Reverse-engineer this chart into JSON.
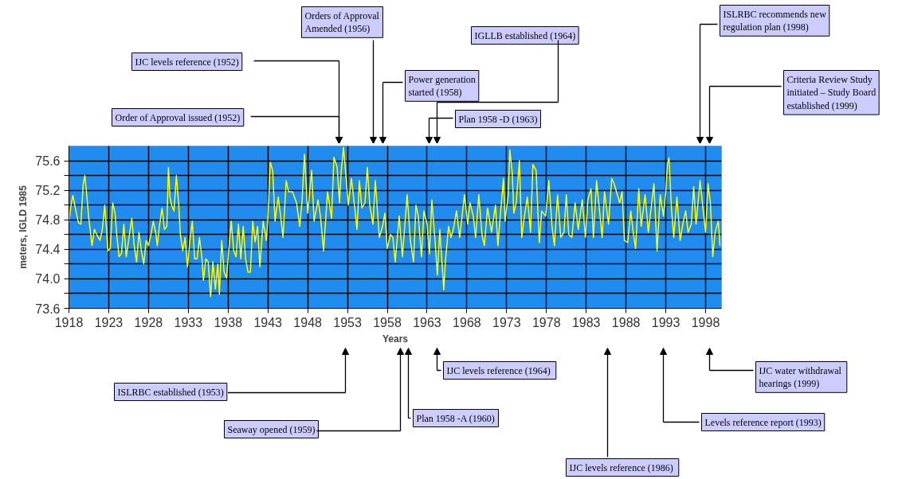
{
  "chart_data": {
    "type": "line",
    "xlabel": "Years",
    "ylabel": "meters, IGLD 1985",
    "xlim": [
      1918,
      2000
    ],
    "xticks": [
      1918,
      1923,
      1928,
      1933,
      1938,
      1943,
      1948,
      1953,
      1958,
      1963,
      1968,
      1973,
      1978,
      1983,
      1988,
      1993,
      1998
    ],
    "ylim": [
      73.6,
      75.8
    ],
    "yticks": [
      73.6,
      {
        "value": 73.8,
        "label": null
      },
      {
        "value": 74,
        "label": "74.0"
      },
      {
        "value": 74.2,
        "label": null
      },
      74.4,
      {
        "value": 74.6,
        "label": null
      },
      74.8,
      {
        "value": 75,
        "label": null
      },
      75.2,
      {
        "value": 75.4,
        "label": null
      },
      75.6
    ],
    "grid": true,
    "marker": "none",
    "line_style": "solid",
    "series": [
      {
        "color": "#ffff00",
        "x": [
          1918.0,
          1918.3,
          1918.5,
          1918.8,
          1919.2,
          1919.5,
          1919.8,
          1920.0,
          1920.2,
          1920.5,
          1920.9,
          1921.2,
          1921.5,
          1921.9,
          1922.2,
          1922.5,
          1922.7,
          1922.9,
          1923.2,
          1923.5,
          1923.8,
          1924.0,
          1924.3,
          1924.6,
          1924.9,
          1925.2,
          1925.5,
          1925.9,
          1926.2,
          1926.5,
          1926.8,
          1927.1,
          1927.4,
          1927.7,
          1928.0,
          1928.3,
          1928.6,
          1928.9,
          1929.1,
          1929.4,
          1929.7,
          1930.0,
          1930.3,
          1930.5,
          1930.7,
          1930.9,
          1931.2,
          1931.5,
          1931.8,
          1932.0,
          1932.3,
          1932.6,
          1932.9,
          1933.2,
          1933.5,
          1933.8,
          1934.1,
          1934.4,
          1934.7,
          1934.9,
          1935.2,
          1935.5,
          1935.8,
          1936.1,
          1936.4,
          1936.7,
          1936.9,
          1937.2,
          1937.5,
          1937.8,
          1938.1,
          1938.4,
          1938.7,
          1939.0,
          1939.3,
          1939.6,
          1939.9,
          1940.2,
          1940.5,
          1940.8,
          1941.1,
          1941.4,
          1941.7,
          1942.0,
          1942.4,
          1942.8,
          1943.0,
          1943.3,
          1943.6,
          1943.9,
          1944.3,
          1944.6,
          1944.9,
          1945.3,
          1945.6,
          1946.1,
          1946.6,
          1947.0,
          1947.3,
          1947.6,
          1948.0,
          1948.5,
          1948.8,
          1949.3,
          1949.6,
          1950.0,
          1950.5,
          1951.0,
          1951.3,
          1951.7,
          1952.0,
          1952.2,
          1952.5,
          1952.8,
          1953.1,
          1953.5,
          1953.8,
          1954.2,
          1954.5,
          1954.8,
          1955.2,
          1955.5,
          1955.8,
          1956.2,
          1956.5,
          1957.0,
          1957.4,
          1957.7,
          1958.0,
          1958.4,
          1958.7,
          1959.0,
          1959.5,
          1959.9,
          1960.5,
          1960.9,
          1961.3,
          1961.6,
          1961.9,
          1962.3,
          1962.6,
          1963.0,
          1963.3,
          1963.6,
          1964.0,
          1964.3,
          1964.6,
          1965.1,
          1965.3,
          1965.7,
          1966.0,
          1966.3,
          1966.7,
          1967.1,
          1967.7,
          1968.1,
          1968.4,
          1968.8,
          1969.1,
          1969.5,
          1969.9,
          1970.2,
          1970.6,
          1971.1,
          1971.6,
          1971.9,
          1972.2,
          1972.6,
          1972.8,
          1973.2,
          1973.4,
          1973.7,
          1973.9,
          1974.2,
          1974.6,
          1974.9,
          1975.2,
          1975.6,
          1976.0,
          1976.3,
          1976.7,
          1977.1,
          1977.4,
          1977.9,
          1978.3,
          1978.7,
          1979.0,
          1979.4,
          1979.8,
          1980.2,
          1980.5,
          1980.8,
          1981.2,
          1981.6,
          1982.0,
          1982.5,
          1982.9,
          1983.2,
          1983.6,
          1983.9,
          1984.3,
          1984.7,
          1985.0,
          1985.3,
          1985.8,
          1986.2,
          1986.5,
          1986.8,
          1987.2,
          1987.5,
          1987.8,
          1988.2,
          1988.6,
          1988.9,
          1989.2,
          1989.6,
          1989.9,
          1990.4,
          1990.8,
          1991.2,
          1991.5,
          1991.9,
          1992.3,
          1992.7,
          1993.0,
          1993.2,
          1993.4,
          1993.7,
          1994.0,
          1994.4,
          1994.8,
          1995.2,
          1995.5,
          1995.8,
          1996.2,
          1996.5,
          1996.8,
          1997.3,
          1997.7,
          1998.0,
          1998.3,
          1998.6,
          1998.9,
          1999.2,
          1999.6,
          1999.8
        ],
        "values": [
          74.76,
          75.03,
          75.13,
          74.96,
          74.76,
          74.74,
          75.29,
          75.4,
          75.18,
          74.82,
          74.45,
          74.67,
          74.6,
          74.52,
          74.67,
          75.0,
          74.71,
          74.38,
          74.41,
          75.03,
          74.89,
          74.6,
          74.3,
          74.34,
          74.74,
          74.3,
          74.52,
          74.82,
          74.45,
          74.23,
          74.63,
          74.38,
          74.2,
          74.52,
          74.45,
          74.6,
          74.78,
          74.63,
          74.45,
          74.74,
          74.96,
          74.67,
          74.71,
          75.51,
          75.11,
          75.0,
          74.92,
          75.4,
          75.0,
          74.6,
          74.38,
          74.56,
          74.16,
          74.52,
          74.78,
          74.27,
          74.27,
          74.56,
          74.3,
          73.98,
          74.27,
          74.23,
          73.76,
          74.23,
          73.86,
          74.2,
          73.79,
          74.52,
          74.09,
          74.01,
          74.41,
          74.78,
          74.38,
          74.3,
          74.74,
          74.27,
          74.71,
          74.27,
          74.09,
          74.09,
          74.78,
          74.5,
          74.71,
          74.16,
          74.78,
          74.52,
          74.82,
          75.58,
          75.47,
          74.78,
          75.11,
          74.85,
          74.56,
          75.33,
          75.18,
          75.18,
          75.03,
          74.71,
          75.07,
          75.69,
          74.89,
          75.47,
          74.78,
          75.07,
          74.85,
          74.38,
          75.18,
          74.82,
          75.65,
          75.51,
          75.03,
          75.44,
          75.78,
          75.4,
          75.0,
          75.36,
          75.07,
          74.67,
          75.33,
          74.96,
          75.03,
          75.51,
          75.0,
          74.74,
          75.33,
          74.56,
          74.71,
          74.89,
          74.41,
          74.6,
          74.56,
          74.23,
          74.85,
          74.3,
          75.14,
          74.52,
          74.23,
          75.0,
          74.85,
          74.3,
          74.92,
          74.74,
          74.34,
          75.07,
          74.52,
          74.05,
          74.67,
          73.85,
          74.23,
          74.71,
          74.56,
          74.67,
          74.92,
          74.56,
          75.14,
          74.74,
          75.03,
          74.85,
          74.56,
          75.14,
          74.6,
          74.45,
          74.96,
          74.63,
          75.0,
          74.45,
          74.85,
          75.36,
          74.78,
          75.14,
          75.75,
          75.44,
          74.89,
          75.03,
          75.6,
          74.56,
          74.82,
          75.11,
          74.63,
          75.55,
          75.47,
          74.49,
          74.92,
          74.85,
          75.33,
          74.71,
          74.45,
          75.14,
          74.56,
          74.63,
          75.14,
          74.6,
          74.56,
          75.03,
          74.67,
          75.07,
          74.56,
          75.07,
          75.22,
          74.56,
          75.33,
          74.89,
          74.56,
          75.18,
          74.74,
          75.36,
          75.29,
          75.18,
          75.03,
          75.18,
          74.52,
          74.49,
          74.92,
          74.63,
          74.41,
          75.22,
          74.71,
          75.14,
          74.63,
          75.0,
          75.29,
          74.38,
          75.14,
          74.85,
          75.18,
          75.55,
          75.64,
          74.96,
          74.56,
          75.11,
          74.52,
          74.78,
          74.92,
          74.63,
          74.74,
          75.25,
          74.74,
          75.33,
          74.92,
          74.63,
          75.29,
          75.03,
          74.3,
          74.63,
          74.78,
          74.45
        ]
      }
    ],
    "annotations": [
      "Order of Approval issued (1952)",
      "IJC levels reference (1952)",
      "Orders of Approval\nAmended (1956)",
      "Power generation\nstarted (1958)",
      "IGLLB established (1964)",
      "Plan 1958 -D (1963)",
      "ISLRBC recommends new\nregulation plan (1998)",
      "Criteria Review Study\ninitiated – Study Board\nestablished (1999)",
      "ISLRBC established (1953)",
      "Seaway opened (1959)",
      "Plan 1958 -A (1960)",
      "IJC levels  reference (1964)",
      "IJC levels  reference (1986)",
      "Levels reference report (1993)",
      "IJC water  withdrawal\nhearings (1999)"
    ]
  }
}
